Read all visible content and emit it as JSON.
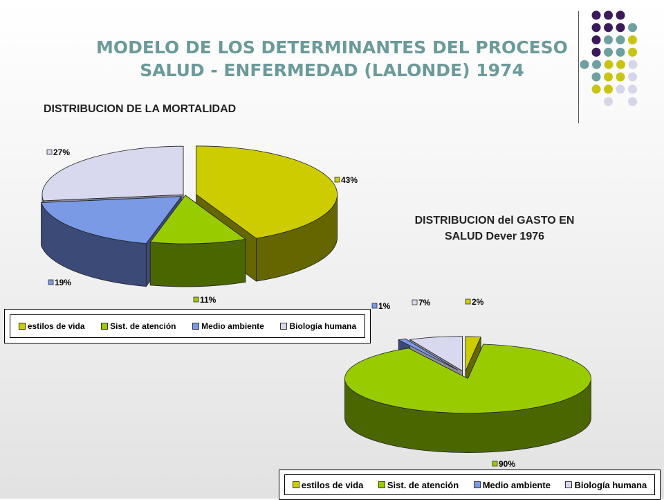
{
  "slide": {
    "title_line1": "MODELO DE LOS DETERMINANTES DEL PROCESO",
    "title_line2": "SALUD - ENFERMEDAD (LALONDE) 1974"
  },
  "decor": {
    "dot_colors": [
      "#3b1a5a",
      "#6fa0a0",
      "#c9c412",
      "#d6d6ea"
    ]
  },
  "chart_data": [
    {
      "type": "pie",
      "title": "DISTRIBUCION DE LA MORTALIDAD",
      "categories": [
        "estilos de vida",
        "Sist. de atención",
        "Medio ambiente",
        "Biología humana"
      ],
      "values": [
        43,
        11,
        19,
        27
      ],
      "labels": [
        "43%",
        "11%",
        "19%",
        "27%"
      ],
      "colors": [
        "#cccc00",
        "#99cc00",
        "#7a9ae6",
        "#d8d8ee"
      ],
      "side_colors": [
        "#666600",
        "#4a6600",
        "#3c4a78",
        "#8c8c9e"
      ],
      "three_d": true,
      "exploded": true,
      "legend": "bottom"
    },
    {
      "type": "pie",
      "title_line1": "DISTRIBUCION del GASTO EN",
      "title_line2": "SALUD Dever 1976",
      "categories": [
        "estilos de vida",
        "Sist. de atención",
        "Medio ambiente",
        "Biología humana"
      ],
      "values": [
        2,
        90,
        1,
        7
      ],
      "labels": [
        "2%",
        "90%",
        "1%",
        "7%"
      ],
      "colors": [
        "#cccc00",
        "#99cc00",
        "#7a9ae6",
        "#d8d8ee"
      ],
      "side_colors": [
        "#666600",
        "#4a6600",
        "#3c4a78",
        "#8c8c9e"
      ],
      "three_d": true,
      "exploded": true,
      "legend": "bottom"
    }
  ]
}
